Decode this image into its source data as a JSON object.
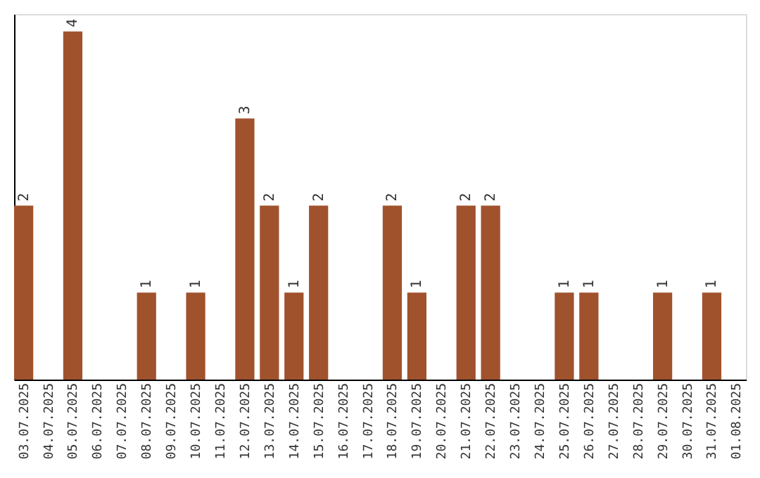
{
  "chart_data": {
    "type": "bar",
    "categories": [
      "03.07.2025",
      "04.07.2025",
      "05.07.2025",
      "06.07.2025",
      "07.07.2025",
      "08.07.2025",
      "09.07.2025",
      "10.07.2025",
      "11.07.2025",
      "12.07.2025",
      "13.07.2025",
      "14.07.2025",
      "15.07.2025",
      "16.07.2025",
      "17.07.2025",
      "18.07.2025",
      "19.07.2025",
      "20.07.2025",
      "21.07.2025",
      "22.07.2025",
      "23.07.2025",
      "24.07.2025",
      "25.07.2025",
      "26.07.2025",
      "27.07.2025",
      "28.07.2025",
      "29.07.2025",
      "30.07.2025",
      "31.07.2025",
      "01.08.2025"
    ],
    "values": [
      2,
      0,
      4,
      0,
      0,
      1,
      0,
      1,
      0,
      3,
      2,
      1,
      2,
      0,
      0,
      2,
      1,
      0,
      2,
      2,
      0,
      0,
      1,
      1,
      0,
      0,
      1,
      0,
      1,
      0
    ],
    "value_labels": [
      "2",
      null,
      "4",
      null,
      null,
      "1",
      null,
      "1",
      null,
      "3",
      "2",
      "1",
      "2",
      null,
      null,
      "2",
      "1",
      null,
      "2",
      "2",
      null,
      null,
      "1",
      "1",
      null,
      null,
      "1",
      null,
      "1",
      null
    ],
    "color": "#a0522d",
    "ylim": [
      0,
      4.2
    ],
    "tick_labels": "x",
    "grid": false
  }
}
